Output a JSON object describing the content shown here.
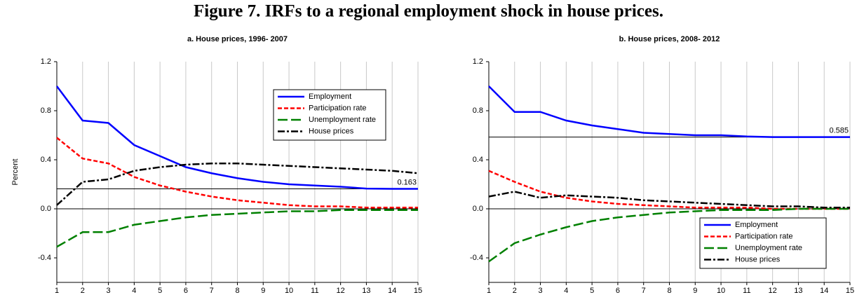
{
  "title": "Figure 7. IRFs to a regional employment shock in house prices.",
  "chart_data": [
    {
      "type": "line",
      "title": "a. House prices, 1996- 2007",
      "y_label": "Percent",
      "x": [
        1,
        2,
        3,
        4,
        5,
        6,
        7,
        8,
        9,
        10,
        11,
        12,
        13,
        14,
        15
      ],
      "xlim": [
        1,
        15
      ],
      "xticks": [
        1,
        2,
        3,
        4,
        5,
        6,
        7,
        8,
        9,
        10,
        11,
        12,
        13,
        14,
        15
      ],
      "ylim": [
        -0.6,
        1.2
      ],
      "yticks": [
        -0.4,
        {
          "value": 0,
          "label": "0.0"
        },
        0.4,
        0.8,
        1.2
      ],
      "grid": "x",
      "legend": "upper right",
      "reference_line": 0.163,
      "series": [
        {
          "name": "Employment",
          "color": "#0000ff",
          "linestyle": "solid",
          "values": [
            1.0,
            0.72,
            0.7,
            0.52,
            0.43,
            0.34,
            0.29,
            0.25,
            0.22,
            0.2,
            0.19,
            0.18,
            0.165,
            0.163,
            0.163
          ]
        },
        {
          "name": "Participation rate",
          "color": "#ff0000",
          "linestyle": "dashed",
          "values": [
            0.58,
            0.41,
            0.37,
            0.26,
            0.19,
            0.14,
            0.1,
            0.07,
            0.05,
            0.03,
            0.02,
            0.02,
            0.01,
            0.01,
            0.01
          ]
        },
        {
          "name": "Unemployment rate",
          "color": "#008000",
          "linestyle": "longdash",
          "values": [
            -0.31,
            -0.19,
            -0.19,
            -0.13,
            -0.1,
            -0.07,
            -0.05,
            -0.04,
            -0.03,
            -0.02,
            -0.02,
            -0.01,
            -0.01,
            -0.01,
            -0.01
          ]
        },
        {
          "name": "House prices",
          "color": "#000000",
          "linestyle": "dashdot",
          "values": [
            0.03,
            0.22,
            0.24,
            0.31,
            0.34,
            0.36,
            0.37,
            0.37,
            0.36,
            0.35,
            0.34,
            0.33,
            0.32,
            0.31,
            0.29
          ]
        }
      ]
    },
    {
      "type": "line",
      "title": "b. House prices, 2008- 2012",
      "x": [
        1,
        2,
        3,
        4,
        5,
        6,
        7,
        8,
        9,
        10,
        11,
        12,
        13,
        14,
        15
      ],
      "xlim": [
        1,
        15
      ],
      "xticks": [
        1,
        2,
        3,
        4,
        5,
        6,
        7,
        8,
        9,
        10,
        11,
        12,
        13,
        14,
        15
      ],
      "ylim": [
        -0.6,
        1.2
      ],
      "yticks": [
        -0.4,
        {
          "value": 0,
          "label": "0.0"
        },
        0.4,
        0.8,
        1.2
      ],
      "grid": "x",
      "legend": "lower right",
      "reference_line": 0.585,
      "series": [
        {
          "name": "Employment",
          "color": "#0000ff",
          "linestyle": "solid",
          "values": [
            1.0,
            0.79,
            0.79,
            0.72,
            0.68,
            0.65,
            0.62,
            0.61,
            0.6,
            0.6,
            0.59,
            0.585,
            0.585,
            0.585,
            0.585
          ]
        },
        {
          "name": "Participation rate",
          "color": "#ff0000",
          "linestyle": "dashed",
          "values": [
            0.31,
            0.22,
            0.14,
            0.09,
            0.06,
            0.04,
            0.03,
            0.02,
            0.01,
            0.01,
            0.01,
            0.0,
            0.0,
            0.0,
            0.0
          ]
        },
        {
          "name": "Unemployment rate",
          "color": "#008000",
          "linestyle": "longdash",
          "values": [
            -0.43,
            -0.28,
            -0.21,
            -0.15,
            -0.1,
            -0.07,
            -0.05,
            -0.03,
            -0.02,
            -0.01,
            -0.01,
            -0.01,
            0.0,
            0.0,
            0.0
          ]
        },
        {
          "name": "House prices",
          "color": "#000000",
          "linestyle": "dashdot",
          "values": [
            0.1,
            0.14,
            0.09,
            0.11,
            0.1,
            0.09,
            0.07,
            0.06,
            0.05,
            0.04,
            0.03,
            0.02,
            0.02,
            0.01,
            0.01
          ]
        }
      ]
    }
  ]
}
